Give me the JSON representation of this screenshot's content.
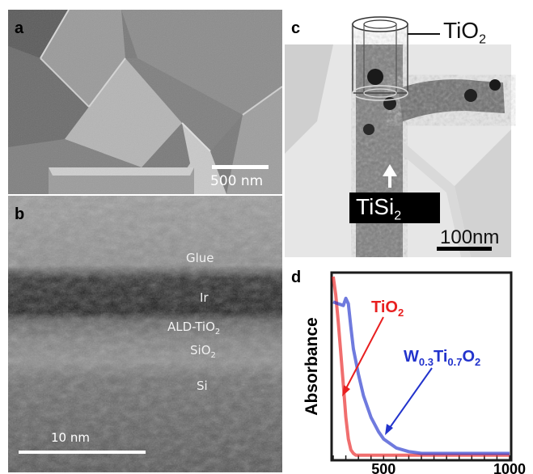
{
  "panel_a": {
    "label": "a",
    "scale_bar": "500 nm"
  },
  "panel_b": {
    "label": "b",
    "layers": {
      "glue": "Glue",
      "ir": "Ir",
      "ald": "ALD-TiO",
      "ald_sub": "2",
      "sio": "SiO",
      "sio_sub": "2",
      "si": "Si"
    },
    "scale_bar": "10 nm"
  },
  "panel_c": {
    "label": "c",
    "shell_label": "TiO",
    "shell_sub": "2",
    "core_label": "TiSi",
    "core_sub": "2",
    "scale_bar": "100nm"
  },
  "panel_d": {
    "label": "d",
    "chart_data": {
      "type": "line",
      "ylabel": "Absorbance",
      "xlabel": "",
      "x_ticks": [
        500,
        1000
      ],
      "xlim": [
        300,
        1000
      ],
      "ylim": [
        0,
        1
      ],
      "series": [
        {
          "name": "TiO2",
          "name_main": "TiO",
          "name_sub": "2",
          "color": "#e82020",
          "x": [
            300,
            310,
            320,
            330,
            340,
            350,
            360,
            370,
            380,
            390,
            400,
            450,
            500,
            600,
            700,
            800,
            900,
            1000
          ],
          "y": [
            1.0,
            0.9,
            0.75,
            0.58,
            0.4,
            0.22,
            0.1,
            0.04,
            0.02,
            0.01,
            0.01,
            0.01,
            0.01,
            0.01,
            0.01,
            0.01,
            0.01,
            0.01
          ]
        },
        {
          "name": "W0.3Ti0.7O2",
          "name_parts": [
            "W",
            "0.3",
            "Ti",
            "0.7",
            "O",
            "2"
          ],
          "color": "#2233cc",
          "x": [
            300,
            320,
            340,
            350,
            360,
            370,
            380,
            400,
            420,
            450,
            480,
            500,
            550,
            600,
            650,
            700,
            800,
            900,
            1000
          ],
          "y": [
            0.86,
            0.85,
            0.84,
            0.88,
            0.85,
            0.72,
            0.6,
            0.46,
            0.34,
            0.22,
            0.14,
            0.1,
            0.05,
            0.03,
            0.02,
            0.02,
            0.02,
            0.02,
            0.02
          ]
        }
      ]
    }
  }
}
